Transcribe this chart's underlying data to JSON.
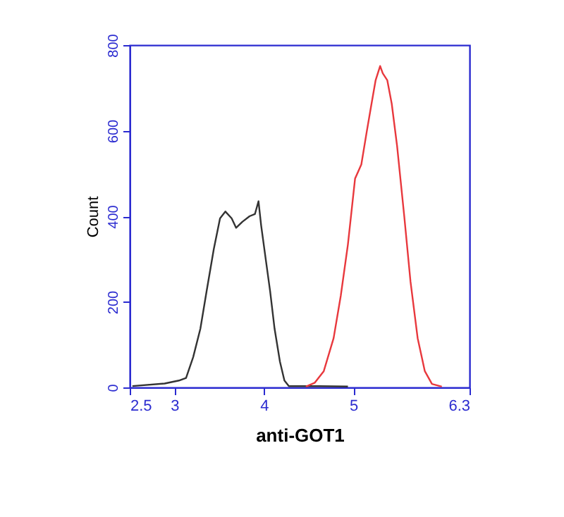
{
  "chart_data": {
    "type": "line",
    "xlabel": "anti-GOT1",
    "ylabel": "Count",
    "xlim": [
      2.5,
      6.3
    ],
    "xticks": [
      2.5,
      3,
      4,
      5,
      6.3
    ],
    "ylim": [
      0,
      800
    ],
    "yticks": [
      0,
      200,
      400,
      600,
      800
    ],
    "grid": false,
    "line_style": "solid",
    "marker": "none",
    "series": [
      {
        "color": "#333333",
        "x": [
          2.53,
          2.89,
          3.05,
          3.13,
          3.21,
          3.29,
          3.36,
          3.44,
          3.51,
          3.57,
          3.64,
          3.69,
          3.76,
          3.84,
          3.9,
          3.94,
          3.97,
          4.02,
          4.07,
          4.12,
          4.18,
          4.23,
          4.28,
          4.62,
          4.94
        ],
        "values": [
          3,
          9,
          16,
          22,
          71,
          137,
          225,
          323,
          395,
          411,
          395,
          373,
          387,
          400,
          405,
          435,
          378,
          301,
          225,
          137,
          60,
          16,
          3,
          3,
          2
        ]
      },
      {
        "color": "#e8383d",
        "x": [
          4.47,
          4.57,
          4.67,
          4.78,
          4.86,
          4.94,
          5.02,
          5.09,
          5.15,
          5.2,
          5.25,
          5.3,
          5.33,
          5.38,
          5.43,
          5.49,
          5.57,
          5.64,
          5.72,
          5.8,
          5.88,
          5.99
        ],
        "values": [
          2,
          11,
          38,
          115,
          214,
          334,
          488,
          521,
          597,
          658,
          718,
          751,
          734,
          718,
          663,
          564,
          400,
          247,
          115,
          38,
          8,
          2
        ]
      }
    ]
  }
}
